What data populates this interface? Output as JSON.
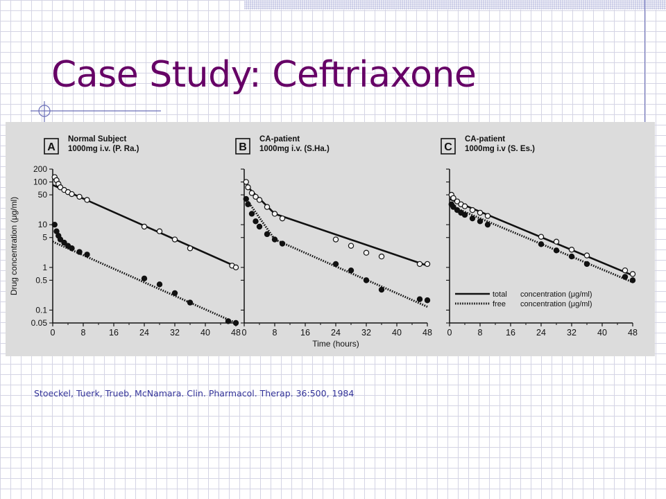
{
  "slide": {
    "title": "Case Study: Ceftriaxone",
    "citation": "Stoeckel, Tuerk, Trueb, McNamara.  Clin. Pharmacol. Therap. 36:500, 1984"
  },
  "colors": {
    "title": "#660066",
    "citation": "#333399",
    "grid": "#d4d4e4",
    "figure_background": "#dcdcdc",
    "ink": "#111111"
  },
  "chart_data": [
    {
      "type": "scatter",
      "panel_letter": "A",
      "title": "Normal Subject\n1000mg i.v. (P. Ra.)",
      "ylabel": "Drug concentration (μg/ml)",
      "xlabel": "",
      "y_scale": "log",
      "xlim": [
        0,
        48
      ],
      "ylim": [
        0.05,
        200
      ],
      "x_ticks": [
        0,
        8,
        16,
        24,
        32,
        40,
        48
      ],
      "y_ticks": [
        0.05,
        0.1,
        0.5,
        1,
        5,
        10,
        50,
        100,
        200
      ],
      "y_tick_labels": [
        "0.05",
        "0.1",
        "0.5",
        "1",
        "5",
        "10",
        "50",
        "100",
        "200"
      ],
      "grid": false,
      "series": [
        {
          "name": "total concentration (μg/ml)",
          "marker": "open",
          "x": [
            0.5,
            1,
            1.5,
            2,
            3,
            4,
            5,
            7,
            9,
            24,
            28,
            32,
            36,
            47,
            48
          ],
          "y": [
            130,
            110,
            90,
            75,
            65,
            58,
            52,
            45,
            38,
            9,
            7,
            4.5,
            2.8,
            1.1,
            1.0
          ],
          "fit": [
            [
              0,
              85
            ],
            [
              48,
              1.05
            ]
          ]
        },
        {
          "name": "free concentration (μg/ml)",
          "marker": "filled",
          "x": [
            0.5,
            1,
            1.5,
            2,
            3,
            4,
            5,
            7,
            9,
            24,
            28,
            32,
            36,
            46,
            48
          ],
          "y": [
            10,
            7,
            5.5,
            4.5,
            3.8,
            3.2,
            2.8,
            2.3,
            2.0,
            0.55,
            0.4,
            0.25,
            0.15,
            0.055,
            0.05
          ],
          "fit": [
            [
              0,
              4.0
            ],
            [
              48,
              0.05
            ]
          ]
        }
      ]
    },
    {
      "type": "scatter",
      "panel_letter": "B",
      "title": "CA-patient\n1000mg i.v.  (S.Ha.)",
      "xlabel": "Time (hours)",
      "ylabel": "",
      "y_scale": "log",
      "xlim": [
        0,
        48
      ],
      "ylim": [
        0.05,
        200
      ],
      "x_ticks": [
        0,
        8,
        16,
        24,
        32,
        40,
        48
      ],
      "grid": false,
      "series": [
        {
          "name": "total concentration (μg/ml)",
          "marker": "open",
          "x": [
            0.5,
            1,
            2,
            3,
            4,
            6,
            8,
            10,
            24,
            28,
            32,
            36,
            46,
            48
          ],
          "y": [
            100,
            75,
            55,
            45,
            38,
            26,
            18,
            14,
            4.5,
            3.2,
            2.2,
            1.8,
            1.2,
            1.2
          ],
          "fit": [
            [
              1,
              75
            ],
            [
              8,
              18
            ],
            [
              48,
              1.1
            ]
          ]
        },
        {
          "name": "free concentration (μg/ml)",
          "marker": "filled",
          "x": [
            0.5,
            1,
            2,
            3,
            4,
            6,
            8,
            10,
            24,
            28,
            32,
            36,
            46,
            48
          ],
          "y": [
            40,
            30,
            18,
            12,
            9,
            6,
            4.5,
            3.6,
            1.2,
            0.85,
            0.5,
            0.3,
            0.18,
            0.17
          ],
          "fit": [
            [
              1,
              35
            ],
            [
              8,
              4.5
            ],
            [
              48,
              0.12
            ]
          ]
        }
      ]
    },
    {
      "type": "scatter",
      "panel_letter": "C",
      "title": "CA-patient\n1000mg i.v  (S. Es.)",
      "xlabel": "",
      "ylabel": "",
      "y_scale": "log",
      "xlim": [
        0,
        48
      ],
      "ylim": [
        0.05,
        200
      ],
      "x_ticks": [
        0,
        8,
        16,
        24,
        32,
        40,
        48
      ],
      "grid": false,
      "legend_position": "bottom-right",
      "series": [
        {
          "name": "total concentration (μg/ml)",
          "marker": "open",
          "line_style": "solid",
          "x": [
            0.5,
            1,
            2,
            3,
            4,
            6,
            8,
            10,
            24,
            28,
            32,
            36,
            46,
            48
          ],
          "y": [
            50,
            42,
            35,
            30,
            27,
            22,
            19,
            16,
            5.2,
            4.0,
            2.6,
            1.9,
            0.85,
            0.7
          ],
          "fit": [
            [
              0,
              40
            ],
            [
              48,
              0.65
            ]
          ]
        },
        {
          "name": "free concentration (μg/ml)",
          "marker": "filled",
          "line_style": "dotted",
          "x": [
            0.5,
            1,
            2,
            3,
            4,
            6,
            8,
            10,
            24,
            28,
            32,
            36,
            46,
            48
          ],
          "y": [
            30,
            26,
            22,
            19,
            17,
            14,
            12,
            10,
            3.5,
            2.5,
            1.8,
            1.2,
            0.6,
            0.5
          ],
          "fit": [
            [
              0,
              28
            ],
            [
              48,
              0.45
            ]
          ]
        }
      ]
    }
  ]
}
